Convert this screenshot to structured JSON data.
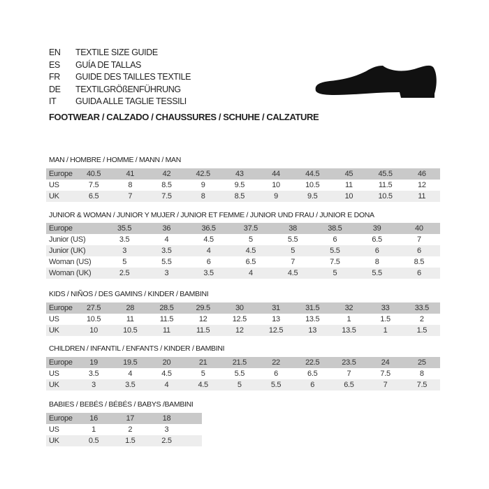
{
  "header": {
    "lines": [
      {
        "code": "EN",
        "text": "TEXTILE SIZE GUIDE"
      },
      {
        "code": "ES",
        "text": "GUÍA DE TALLAS"
      },
      {
        "code": "FR",
        "text": "GUIDE DES TAILLES TEXTILE"
      },
      {
        "code": "DE",
        "text": "TEXTILGRÖßENFÜHRUNG"
      },
      {
        "code": "IT",
        "text": "GUIDA ALLE TAGLIE TESSILI"
      }
    ],
    "title": "FOOTWEAR / CALZADO / CHAUSSURES / SCHUHE / CALZATURE",
    "icon": "shoe-icon"
  },
  "sections": [
    {
      "title": "MAN / HOMBRE / HOMME / MANN / MAN",
      "rows": [
        {
          "label": "Europe",
          "values": [
            "40.5",
            "41",
            "42",
            "42.5",
            "43",
            "44",
            "44.5",
            "45",
            "45.5",
            "46"
          ]
        },
        {
          "label": "US",
          "values": [
            "7.5",
            "8",
            "8.5",
            "9",
            "9.5",
            "10",
            "10.5",
            "11",
            "11.5",
            "12"
          ]
        },
        {
          "label": "UK",
          "values": [
            "6.5",
            "7",
            "7.5",
            "8",
            "8.5",
            "9",
            "9.5",
            "10",
            "10.5",
            "11"
          ]
        }
      ]
    },
    {
      "title": "JUNIOR & WOMAN / JUNIOR Y MUJER / JUNIOR ET FEMME / JUNIOR UND FRAU / JUNIOR E DONA",
      "rows": [
        {
          "label": "Europe",
          "values": [
            "35.5",
            "36",
            "36.5",
            "37.5",
            "38",
            "38.5",
            "39",
            "40"
          ]
        },
        {
          "label": "Junior (US)",
          "values": [
            "3.5",
            "4",
            "4.5",
            "5",
            "5.5",
            "6",
            "6.5",
            "7"
          ]
        },
        {
          "label": "Junior (UK)",
          "values": [
            "3",
            "3.5",
            "4",
            "4.5",
            "5",
            "5.5",
            "6",
            "6"
          ]
        },
        {
          "label": "Woman (US)",
          "values": [
            "5",
            "5.5",
            "6",
            "6.5",
            "7",
            "7.5",
            "8",
            "8.5"
          ]
        },
        {
          "label": "Woman (UK)",
          "values": [
            "2.5",
            "3",
            "3.5",
            "4",
            "4.5",
            "5",
            "5.5",
            "6"
          ]
        }
      ]
    },
    {
      "title": "KIDS / NIÑOS / DES GAMINS / KINDER / BAMBINI",
      "rows": [
        {
          "label": "Europe",
          "values": [
            "27.5",
            "28",
            "28.5",
            "29.5",
            "30",
            "31",
            "31.5",
            "32",
            "33",
            "33.5"
          ]
        },
        {
          "label": "US",
          "values": [
            "10.5",
            "11",
            "11.5",
            "12",
            "12.5",
            "13",
            "13.5",
            "1",
            "1.5",
            "2"
          ]
        },
        {
          "label": "UK",
          "values": [
            "10",
            "10.5",
            "11",
            "11.5",
            "12",
            "12.5",
            "13",
            "13.5",
            "1",
            "1.5"
          ]
        }
      ]
    },
    {
      "title": "CHILDREN / INFANTIL / ENFANTS / KINDER / BAMBINI",
      "rows": [
        {
          "label": "Europe",
          "values": [
            "19",
            "19.5",
            "20",
            "21",
            "21.5",
            "22",
            "22.5",
            "23.5",
            "24",
            "25"
          ]
        },
        {
          "label": "US",
          "values": [
            "3.5",
            "4",
            "4.5",
            "5",
            "5.5",
            "6",
            "6.5",
            "7",
            "7.5",
            "8"
          ]
        },
        {
          "label": "UK",
          "values": [
            "3",
            "3.5",
            "4",
            "4.5",
            "5",
            "5.5",
            "6",
            "6.5",
            "7",
            "7.5"
          ]
        }
      ]
    },
    {
      "title": "BABIES  / BEBÉS / BÉBÉS / BABYS /BAMBINI",
      "rows": [
        {
          "label": "Europe",
          "values": [
            "16",
            "17",
            "18"
          ]
        },
        {
          "label": "US",
          "values": [
            "1",
            "2",
            "3"
          ]
        },
        {
          "label": "UK",
          "values": [
            "0.5",
            "1.5",
            "2.5"
          ]
        }
      ]
    }
  ]
}
